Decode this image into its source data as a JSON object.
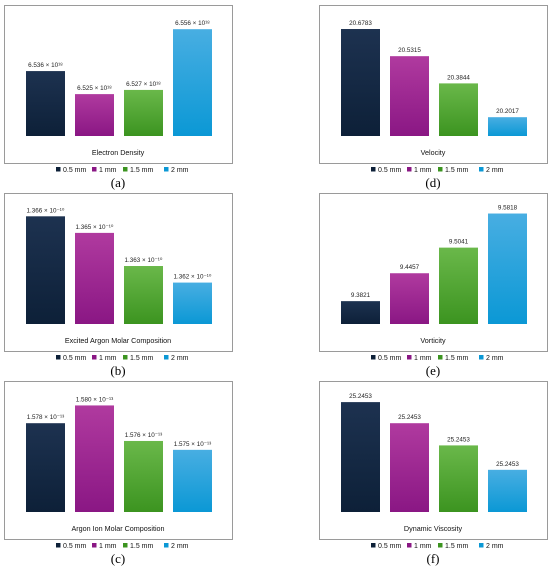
{
  "legend_series": [
    "0.5 mm",
    "1 mm",
    "1.5 mm",
    "2 mm"
  ],
  "chart_data": [
    {
      "type": "bar",
      "panel_letter": "(a)",
      "xlabel": "Electron Density",
      "categories": [
        "0.5 mm",
        "1 mm",
        "1.5 mm",
        "2 mm"
      ],
      "values": [
        6.536e+18,
        6.525e+18,
        6.527e+18,
        6.556e+18
      ],
      "value_labels": [
        "6.536 × 10¹⁸",
        "6.525 × 10¹⁸",
        "6.527 × 10¹⁸",
        "6.556 × 10¹⁸"
      ],
      "ylim": [
        6.505e+18,
        6.558e+18
      ],
      "legend": "bottom",
      "grid": false
    },
    {
      "type": "bar",
      "panel_letter": "(d)",
      "xlabel": "Velocity",
      "categories": [
        "0.5 mm",
        "1 mm",
        "1.5 mm",
        "2 mm"
      ],
      "values": [
        20.6783,
        20.5315,
        20.3844,
        20.2017
      ],
      "value_labels": [
        "20.6783",
        "20.5315",
        "20.3844",
        "20.2017"
      ],
      "ylim": [
        20.1,
        20.7
      ],
      "legend": "bottom",
      "grid": false
    },
    {
      "type": "bar",
      "panel_letter": "(b)",
      "xlabel": "Excited Argon Molar Composition",
      "categories": [
        "0.5 mm",
        "1 mm",
        "1.5 mm",
        "2 mm"
      ],
      "values": [
        1.366e-10,
        1.365e-10,
        1.363e-10,
        1.362e-10
      ],
      "value_labels": [
        "1.366 × 10⁻¹⁰",
        "1.365 × 10⁻¹⁰",
        "1.363 × 10⁻¹⁰",
        "1.362 × 10⁻¹⁰"
      ],
      "ylim": [
        1.3595e-10,
        1.3662e-10
      ],
      "legend": "bottom",
      "grid": false
    },
    {
      "type": "bar",
      "panel_letter": "(e)",
      "xlabel": "Vorticity",
      "categories": [
        "0.5 mm",
        "1 mm",
        "1.5 mm",
        "2 mm"
      ],
      "values": [
        9.3821,
        9.4457,
        9.5041,
        9.5818
      ],
      "value_labels": [
        "9.3821",
        "9.4457",
        "9.5041",
        "9.5818"
      ],
      "ylim": [
        9.33,
        9.583
      ],
      "legend": "bottom",
      "grid": false
    },
    {
      "type": "bar",
      "panel_letter": "(c)",
      "xlabel": "Argon Ion Molar Composition",
      "categories": [
        "0.5 mm",
        "1 mm",
        "1.5 mm",
        "2 mm"
      ],
      "values": [
        1.578e-13,
        1.58e-13,
        1.576e-13,
        1.575e-13
      ],
      "value_labels": [
        "1.578 × 10⁻¹³",
        "1.580 × 10⁻¹³",
        "1.576 × 10⁻¹³",
        "1.575 × 10⁻¹³"
      ],
      "ylim": [
        1.568e-13,
        1.5805e-13
      ],
      "legend": "bottom",
      "grid": false
    },
    {
      "type": "bar",
      "panel_letter": "(f)",
      "xlabel": "Dynamic Viscosity",
      "categories": [
        "0.5 mm",
        "1 mm",
        "1.5 mm",
        "2 mm"
      ],
      "values": [
        25.2453,
        25.2453,
        25.2453,
        25.2453
      ],
      "value_labels": [
        "25.2453",
        "25.2453",
        "25.2453",
        "25.2453"
      ],
      "legend": "bottom",
      "grid": false
    }
  ],
  "colors": {
    "series": [
      [
        "#1d3250",
        "#0d2038"
      ],
      [
        "#b03a9f",
        "#8a1784"
      ],
      [
        "#6ab84a",
        "#3c9420"
      ],
      [
        "#48aee2",
        "#0b98d5"
      ]
    ],
    "border": "#9a9a9a"
  }
}
